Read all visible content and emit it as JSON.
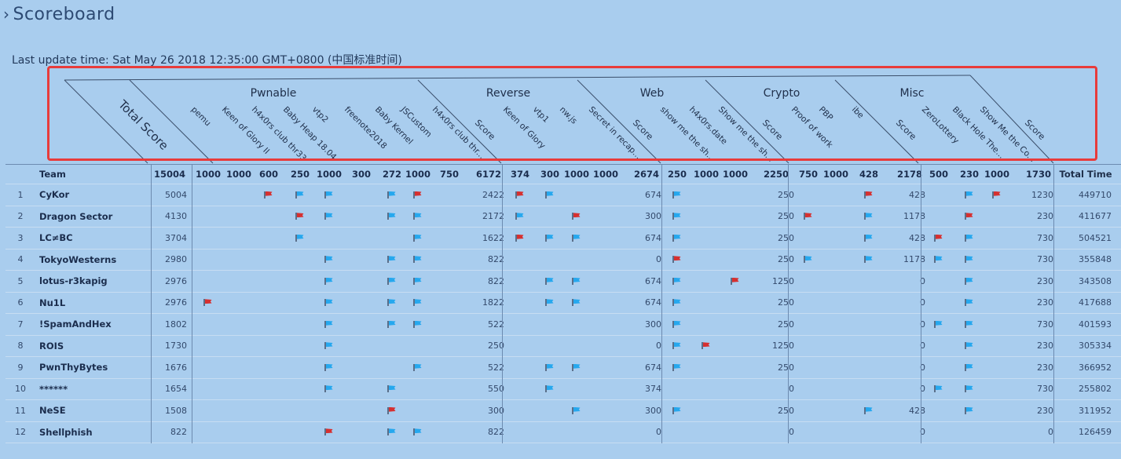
{
  "page": {
    "title": "Scoreboard",
    "last_update": "Last update time: Sat May 26 2018 12:35:00 GMT+0800 (中国标准时间)"
  },
  "header": {
    "total_score_label": "Total Score",
    "team_label": "Team",
    "total_time_label": "Total Time"
  },
  "categories": [
    {
      "name": "Pwnable",
      "challenges": [
        "pemu",
        "Keen of Glory II",
        "h4x0rs club thr33",
        "Baby Heap 18.04",
        "vtp2",
        "freenote2018",
        "Baby Kernel",
        "JSCustom",
        "h4x0rs club thr..."
      ],
      "score_label": "Score"
    },
    {
      "name": "Reverse",
      "challenges": [
        "Keen of Glory",
        "vtp1",
        "nw.js",
        "Secret in recap..."
      ],
      "score_label": "Score"
    },
    {
      "name": "Web",
      "challenges": [
        "show me the sh...",
        "h4x0rs.date",
        "Show me the sh..."
      ],
      "score_label": "Score"
    },
    {
      "name": "Crypto",
      "challenges": [
        "Proof of work",
        "PBP",
        "ibe"
      ],
      "score_label": "Score"
    },
    {
      "name": "Misc",
      "challenges": [
        "ZeroLottery",
        "Black Hole The...",
        "Show Me the Co..."
      ],
      "score_label": "Score"
    }
  ],
  "max_points": [
    "15004",
    "1000",
    "1000",
    "600",
    "250",
    "1000",
    "300",
    "272",
    "1000",
    "750",
    "6172",
    "374",
    "300",
    "1000",
    "1000",
    "2674",
    "250",
    "1000",
    "1000",
    "2250",
    "750",
    "1000",
    "428",
    "2178",
    "500",
    "230",
    "1000",
    "1730"
  ],
  "teams": [
    {
      "rank": "1",
      "name": "CyKor",
      "total": "5004",
      "pwn": [
        "",
        "",
        "r",
        "b",
        "b",
        "",
        "b",
        "r",
        ""
      ],
      "pwn_score": "2422",
      "rev": [
        "r",
        "b",
        "",
        ""
      ],
      "rev_score": "674",
      "web": [
        "b",
        "",
        ""
      ],
      "web_score": "250",
      "crypto": [
        "",
        "",
        ""
      ],
      "crypto_score": "",
      "misc_first": "r",
      "misc_score": "428",
      "misc": [
        "",
        "b",
        "r"
      ],
      "misc_total": "1230",
      "time": "449710"
    },
    {
      "rank": "2",
      "name": "Dragon Sector",
      "total": "4130",
      "pwn": [
        "",
        "",
        "",
        "r",
        "b",
        "",
        "b",
        "b",
        ""
      ],
      "pwn_score": "2172",
      "rev": [
        "b",
        "",
        "r",
        ""
      ],
      "rev_score": "300",
      "web": [
        "b",
        "",
        ""
      ],
      "web_score": "250",
      "crypto": [
        "r",
        "",
        ""
      ],
      "crypto_score": "",
      "misc_first": "b",
      "misc_score": "1178",
      "misc": [
        "",
        "r",
        ""
      ],
      "misc_total": "230",
      "time": "411677"
    },
    {
      "rank": "3",
      "name": "LC≠BC",
      "total": "3704",
      "pwn": [
        "",
        "",
        "",
        "b",
        "",
        "",
        "",
        "b",
        ""
      ],
      "pwn_score": "1622",
      "rev": [
        "r",
        "b",
        "b",
        ""
      ],
      "rev_score": "674",
      "web": [
        "b",
        "",
        ""
      ],
      "web_score": "250",
      "crypto": [
        "",
        "",
        ""
      ],
      "crypto_score": "",
      "misc_first": "b",
      "misc_score": "428",
      "misc": [
        "r",
        "b",
        ""
      ],
      "misc_total": "730",
      "time": "504521"
    },
    {
      "rank": "4",
      "name": "TokyoWesterns",
      "total": "2980",
      "pwn": [
        "",
        "",
        "",
        "",
        "b",
        "",
        "b",
        "b",
        ""
      ],
      "pwn_score": "822",
      "rev": [
        "",
        "",
        "",
        ""
      ],
      "rev_score": "0",
      "web": [
        "r",
        "",
        ""
      ],
      "web_score": "250",
      "crypto": [
        "b",
        "",
        ""
      ],
      "crypto_score": "",
      "misc_first": "b",
      "misc_score": "1178",
      "misc": [
        "b",
        "b",
        ""
      ],
      "misc_total": "730",
      "time": "355848"
    },
    {
      "rank": "5",
      "name": "lotus-r3kapig",
      "total": "2976",
      "pwn": [
        "",
        "",
        "",
        "",
        "b",
        "",
        "b",
        "b",
        ""
      ],
      "pwn_score": "822",
      "rev": [
        "",
        "b",
        "b",
        ""
      ],
      "rev_score": "674",
      "web": [
        "b",
        "",
        "r"
      ],
      "web_score": "1250",
      "crypto": [
        "",
        "",
        ""
      ],
      "crypto_score": "",
      "misc_first": "",
      "misc_score": "0",
      "misc": [
        "",
        "b",
        ""
      ],
      "misc_total": "230",
      "time": "343508"
    },
    {
      "rank": "6",
      "name": "Nu1L",
      "total": "2976",
      "pwn": [
        "r",
        "",
        "",
        "",
        "b",
        "",
        "b",
        "b",
        ""
      ],
      "pwn_score": "1822",
      "rev": [
        "",
        "b",
        "b",
        ""
      ],
      "rev_score": "674",
      "web": [
        "b",
        "",
        ""
      ],
      "web_score": "250",
      "crypto": [
        "",
        "",
        ""
      ],
      "crypto_score": "",
      "misc_first": "",
      "misc_score": "0",
      "misc": [
        "",
        "b",
        ""
      ],
      "misc_total": "230",
      "time": "417688"
    },
    {
      "rank": "7",
      "name": "!SpamAndHex",
      "total": "1802",
      "pwn": [
        "",
        "",
        "",
        "",
        "b",
        "",
        "b",
        "b",
        ""
      ],
      "pwn_score": "522",
      "rev": [
        "",
        "",
        "",
        ""
      ],
      "rev_score": "300",
      "web": [
        "b",
        "",
        ""
      ],
      "web_score": "250",
      "crypto": [
        "",
        "",
        ""
      ],
      "crypto_score": "",
      "misc_first": "",
      "misc_score": "0",
      "misc": [
        "b",
        "b",
        ""
      ],
      "misc_total": "730",
      "time": "401593"
    },
    {
      "rank": "8",
      "name": "ROIS",
      "total": "1730",
      "pwn": [
        "",
        "",
        "",
        "",
        "b",
        "",
        "",
        "",
        ""
      ],
      "pwn_score": "250",
      "rev": [
        "",
        "",
        "",
        ""
      ],
      "rev_score": "0",
      "web": [
        "b",
        "r",
        ""
      ],
      "web_score": "1250",
      "crypto": [
        "",
        "",
        ""
      ],
      "crypto_score": "",
      "misc_first": "",
      "misc_score": "0",
      "misc": [
        "",
        "b",
        ""
      ],
      "misc_total": "230",
      "time": "305334"
    },
    {
      "rank": "9",
      "name": "PwnThyBytes",
      "total": "1676",
      "pwn": [
        "",
        "",
        "",
        "",
        "b",
        "",
        "",
        "b",
        ""
      ],
      "pwn_score": "522",
      "rev": [
        "",
        "b",
        "b",
        ""
      ],
      "rev_score": "674",
      "web": [
        "b",
        "",
        ""
      ],
      "web_score": "250",
      "crypto": [
        "",
        "",
        ""
      ],
      "crypto_score": "",
      "misc_first": "",
      "misc_score": "0",
      "misc": [
        "",
        "b",
        ""
      ],
      "misc_total": "230",
      "time": "366952"
    },
    {
      "rank": "10",
      "name": "******",
      "total": "1654",
      "pwn": [
        "",
        "",
        "",
        "",
        "b",
        "",
        "b",
        "",
        ""
      ],
      "pwn_score": "550",
      "rev": [
        "",
        "b",
        "",
        ""
      ],
      "rev_score": "374",
      "web": [
        "",
        "",
        ""
      ],
      "web_score": "0",
      "crypto": [
        "",
        "",
        ""
      ],
      "crypto_score": "",
      "misc_first": "",
      "misc_score": "0",
      "misc": [
        "b",
        "b",
        ""
      ],
      "misc_total": "730",
      "time": "255802"
    },
    {
      "rank": "11",
      "name": "NeSE",
      "total": "1508",
      "pwn": [
        "",
        "",
        "",
        "",
        "",
        "",
        "r",
        "",
        ""
      ],
      "pwn_score": "300",
      "rev": [
        "",
        "",
        "b",
        ""
      ],
      "rev_score": "300",
      "web": [
        "b",
        "",
        ""
      ],
      "web_score": "250",
      "crypto": [
        "",
        "",
        ""
      ],
      "crypto_score": "",
      "misc_first": "b",
      "misc_score": "428",
      "misc": [
        "",
        "b",
        ""
      ],
      "misc_total": "230",
      "time": "311952"
    },
    {
      "rank": "12",
      "name": "Shellphish",
      "total": "822",
      "pwn": [
        "",
        "",
        "",
        "",
        "r",
        "",
        "b",
        "b",
        ""
      ],
      "pwn_score": "822",
      "rev": [
        "",
        "",
        "",
        ""
      ],
      "rev_score": "0",
      "web": [
        "",
        "",
        ""
      ],
      "web_score": "0",
      "crypto": [
        "",
        "",
        ""
      ],
      "crypto_score": "",
      "misc_first": "",
      "misc_score": "0",
      "misc": [
        "",
        "",
        ""
      ],
      "misc_total": "0",
      "time": "126459"
    }
  ],
  "colors": {
    "solved_flag": "#26a8ee",
    "first_blood_flag": "#d63030",
    "highlight_box": "#e83b3b"
  }
}
